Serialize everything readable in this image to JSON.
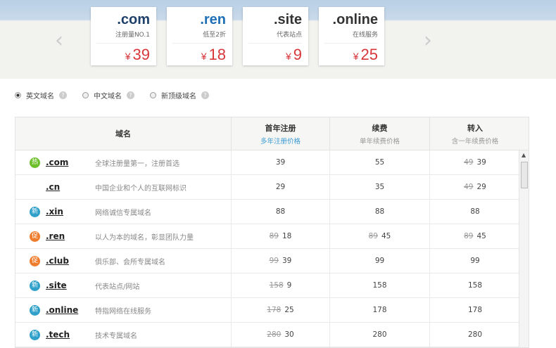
{
  "promo_cards": [
    {
      "logo": ".com",
      "tagline": "注册量NO.1",
      "currency": "¥",
      "price": "39",
      "color": "#1d3f6a"
    },
    {
      "logo": ".ren",
      "tagline": "低至2折",
      "currency": "¥",
      "price": "18",
      "color": "#1f6fb6"
    },
    {
      "logo": ".site",
      "tagline": "代表站点",
      "currency": "¥",
      "price": "9",
      "color": "#333"
    },
    {
      "logo": ".online",
      "tagline": "在线服务",
      "currency": "¥",
      "price": "25",
      "color": "#333"
    }
  ],
  "nav": {
    "prev": "‹",
    "next": "›"
  },
  "filters": [
    {
      "label": "英文域名",
      "selected": true
    },
    {
      "label": "中文域名",
      "selected": false
    },
    {
      "label": "新顶级域名",
      "selected": false
    }
  ],
  "help_glyph": "?",
  "table": {
    "headers": [
      {
        "title": "域名",
        "sub": ""
      },
      {
        "title": "首年注册",
        "sub": "多年注册价格"
      },
      {
        "title": "续费",
        "sub": "单年续费价格"
      },
      {
        "title": "转入",
        "sub": "含一年续费价格"
      }
    ],
    "rows": [
      {
        "badge": "热",
        "badge_color": "#6cbf2a",
        "domain": ".com",
        "desc": "全球注册量第一，注册首选",
        "reg_old": "",
        "reg": "39",
        "renew_old": "",
        "renew": "55",
        "transfer_old": "49",
        "transfer": "39"
      },
      {
        "badge": "",
        "badge_color": "",
        "domain": ".cn",
        "desc": "中国企业和个人的互联网标识",
        "reg_old": "",
        "reg": "29",
        "renew_old": "",
        "renew": "35",
        "transfer_old": "49",
        "transfer": "29"
      },
      {
        "badge": "新",
        "badge_color": "#2ea0c9",
        "domain": ".xin",
        "desc": "网络诚信专属域名",
        "reg_old": "",
        "reg": "88",
        "renew_old": "",
        "renew": "88",
        "transfer_old": "",
        "transfer": "88"
      },
      {
        "badge": "促",
        "badge_color": "#ef7d2e",
        "domain": ".ren",
        "desc": "以人为本的域名，彰显团队力量",
        "reg_old": "89",
        "reg": "18",
        "renew_old": "89",
        "renew": "45",
        "transfer_old": "89",
        "transfer": "45"
      },
      {
        "badge": "促",
        "badge_color": "#ef7d2e",
        "domain": ".club",
        "desc": "俱乐部、会所专属域名",
        "reg_old": "99",
        "reg": "39",
        "renew_old": "",
        "renew": "99",
        "transfer_old": "",
        "transfer": "99"
      },
      {
        "badge": "新",
        "badge_color": "#2ea0c9",
        "domain": ".site",
        "desc": "代表站点/网站",
        "reg_old": "158",
        "reg": "9",
        "renew_old": "",
        "renew": "158",
        "transfer_old": "",
        "transfer": "158"
      },
      {
        "badge": "新",
        "badge_color": "#2ea0c9",
        "domain": ".online",
        "desc": "特指网络在线服务",
        "reg_old": "178",
        "reg": "25",
        "renew_old": "",
        "renew": "178",
        "transfer_old": "",
        "transfer": "178"
      },
      {
        "badge": "新",
        "badge_color": "#2ea0c9",
        "domain": ".tech",
        "desc": "技术专属域名",
        "reg_old": "280",
        "reg": "30",
        "renew_old": "",
        "renew": "280",
        "transfer_old": "",
        "transfer": "280"
      }
    ]
  }
}
